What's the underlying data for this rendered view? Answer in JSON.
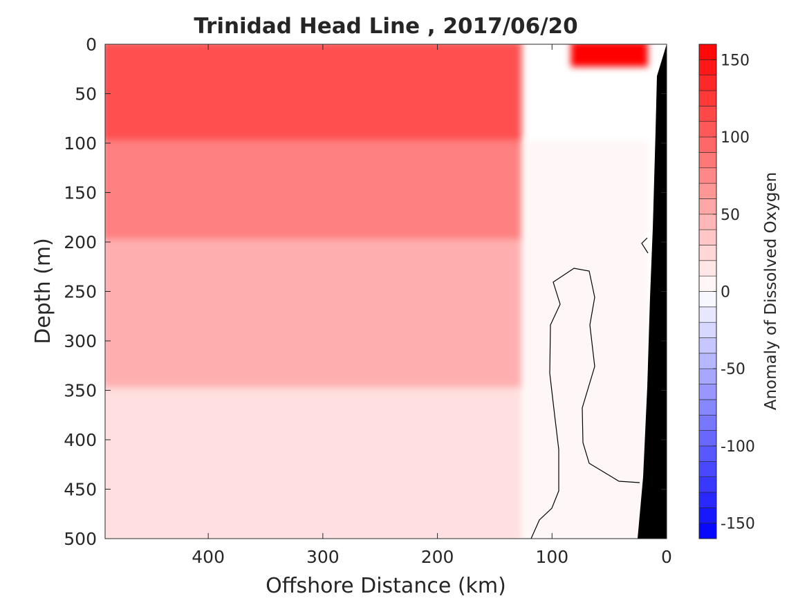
{
  "chart_data": {
    "type": "contour",
    "title": "Trinidad Head Line , 2017/06/20",
    "xlabel": "Offshore Distance (km)",
    "ylabel": "Depth (m)",
    "xlim": [
      490,
      0
    ],
    "ylim": [
      0,
      500
    ],
    "x_reversed": true,
    "y_reversed": true,
    "x_ticks": [
      400,
      300,
      200,
      100,
      0
    ],
    "y_ticks": [
      0,
      50,
      100,
      150,
      200,
      250,
      300,
      350,
      400,
      450,
      500
    ],
    "colorbar": {
      "label": "Anomaly of Dissolved Oxygen",
      "limits": [
        -160,
        160
      ],
      "step": 10,
      "ticks": [
        150,
        100,
        50,
        0,
        -50,
        -100,
        -150
      ],
      "colormap": "blue-white-red",
      "color_positive": "#ff0000",
      "color_negative": "#0000ff"
    },
    "zero_contour": true,
    "land_mask_color": "#000000",
    "bands_approx": [
      {
        "depth_range": [
          0,
          100
        ],
        "offshore_km": [
          490,
          130
        ],
        "anomaly": 110
      },
      {
        "depth_range": [
          0,
          20
        ],
        "offshore_km": [
          80,
          20
        ],
        "anomaly": 160
      },
      {
        "depth_range": [
          100,
          200
        ],
        "offshore_km": [
          490,
          130
        ],
        "anomaly": 80
      },
      {
        "depth_range": [
          200,
          350
        ],
        "offshore_km": [
          490,
          130
        ],
        "anomaly": 50
      },
      {
        "depth_range": [
          350,
          500
        ],
        "offshore_km": [
          490,
          130
        ],
        "anomaly": 20
      },
      {
        "depth_range": [
          100,
          500
        ],
        "offshore_km": [
          120,
          20
        ],
        "anomaly": 5
      }
    ]
  }
}
